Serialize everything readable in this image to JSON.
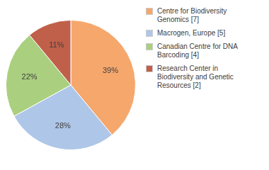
{
  "chart_data": {
    "type": "pie",
    "categories": [
      "Centre for Biodiversity\nGenomics [7]",
      "Macrogen, Europe [5]",
      "Canadian Centre for DNA\nBarcoding [4]",
      "Research Center in\nBiodiversity and Genetic\nResources [2]"
    ],
    "values": [
      39,
      28,
      22,
      11
    ],
    "value_labels": [
      "39%",
      "28%",
      "22%",
      "11%"
    ],
    "colors": [
      "#f5a76c",
      "#aec6e8",
      "#aacf7e",
      "#c0604a"
    ],
    "data_labels": true,
    "legend": "right"
  }
}
